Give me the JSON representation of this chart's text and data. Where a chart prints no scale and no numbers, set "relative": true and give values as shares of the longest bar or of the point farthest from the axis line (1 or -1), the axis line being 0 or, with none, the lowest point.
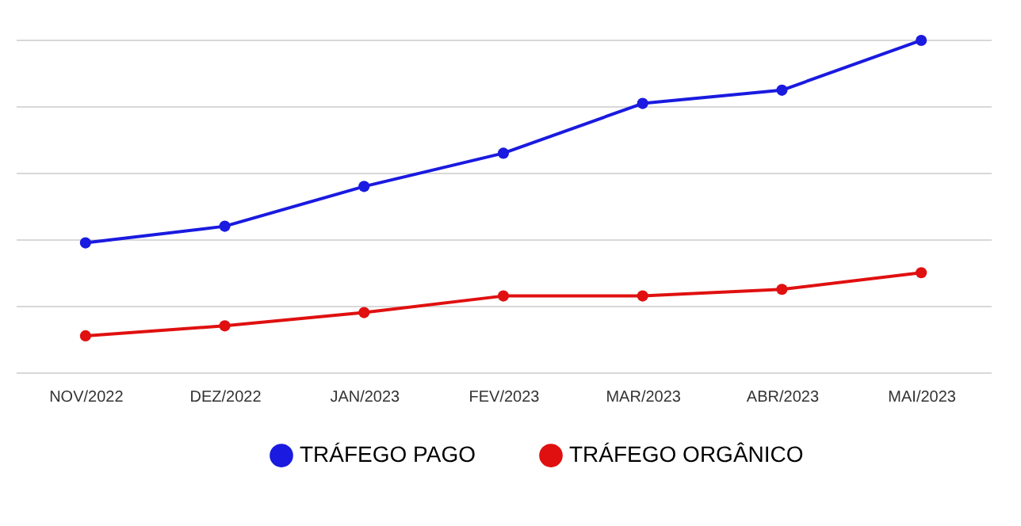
{
  "chart_data": {
    "type": "line",
    "relative": true,
    "categories": [
      "NOV/2022",
      "DEZ/2022",
      "JAN/2023",
      "FEV/2023",
      "MAR/2023",
      "ABR/2023",
      "MAI/2023"
    ],
    "series": [
      {
        "name": "TRÁFEGO PAGO",
        "color": "#1a1ae0",
        "values": [
          0.39,
          0.44,
          0.56,
          0.66,
          0.81,
          0.85,
          1.0
        ]
      },
      {
        "name": "TRÁFEGO ORGÂNICO",
        "color": "#e01010",
        "values": [
          0.11,
          0.14,
          0.18,
          0.23,
          0.23,
          0.25,
          0.3
        ]
      }
    ],
    "marker": "circle",
    "line_style": "solid",
    "grid": "y",
    "legend": "bottom"
  }
}
